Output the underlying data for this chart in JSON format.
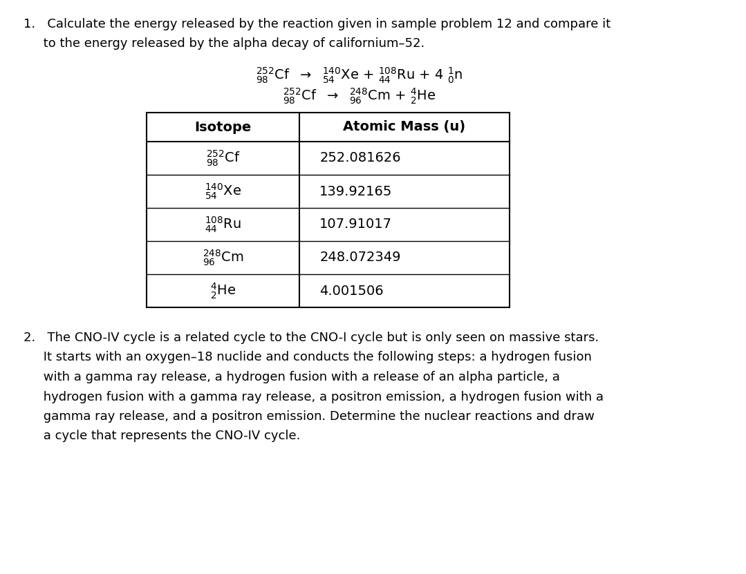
{
  "bg_color": "#ffffff",
  "item1_text": "1.  Calculate the energy released by the reaction given in sample problem 12 and compare it\n    to the energy released by the alpha decay of californium–252.",
  "equation1_main": "$^{252}_{98}$Cf  →  $^{140}_{54}$Xe + $^{108}_{44}$Ru + 4 $^{1}_{0}$n",
  "equation2_main": "$^{252}_{98}$Cf  →  $^{248}_{96}$Cm + $^{4}_{2}$He",
  "table_headers": [
    "Isotope",
    "Atomic Mass (u)"
  ],
  "table_rows": [
    [
      "$^{252}_{98}$Cf",
      "252.081626"
    ],
    [
      "$^{140}_{54}$Xe",
      "139.92165"
    ],
    [
      "$^{108}_{44}$Ru",
      "107.91017"
    ],
    [
      "$^{248}_{96}$Cm",
      "248.072349"
    ],
    [
      "$^{4}_{2}$He",
      "4.001506"
    ]
  ],
  "item2_text": "2.  The CNO-IV cycle is a related cycle to the CNO-I cycle but is only seen on massive stars.\n    It starts with an oxygen–18 nuclide and conducts the following steps: a hydrogen fusion\n    with a gamma ray release, a hydrogen fusion with a release of an alpha particle, a\n    hydrogen fusion with a gamma ray release, a positron emission, a hydrogen fusion with a\n    gamma ray release, and a positron emission. Determine the nuclear reactions and draw\n    a cycle that represents the CNO-IV cycle.",
  "font_size_body": 13,
  "font_size_eq": 13,
  "font_size_table": 13,
  "font_color": "#000000"
}
